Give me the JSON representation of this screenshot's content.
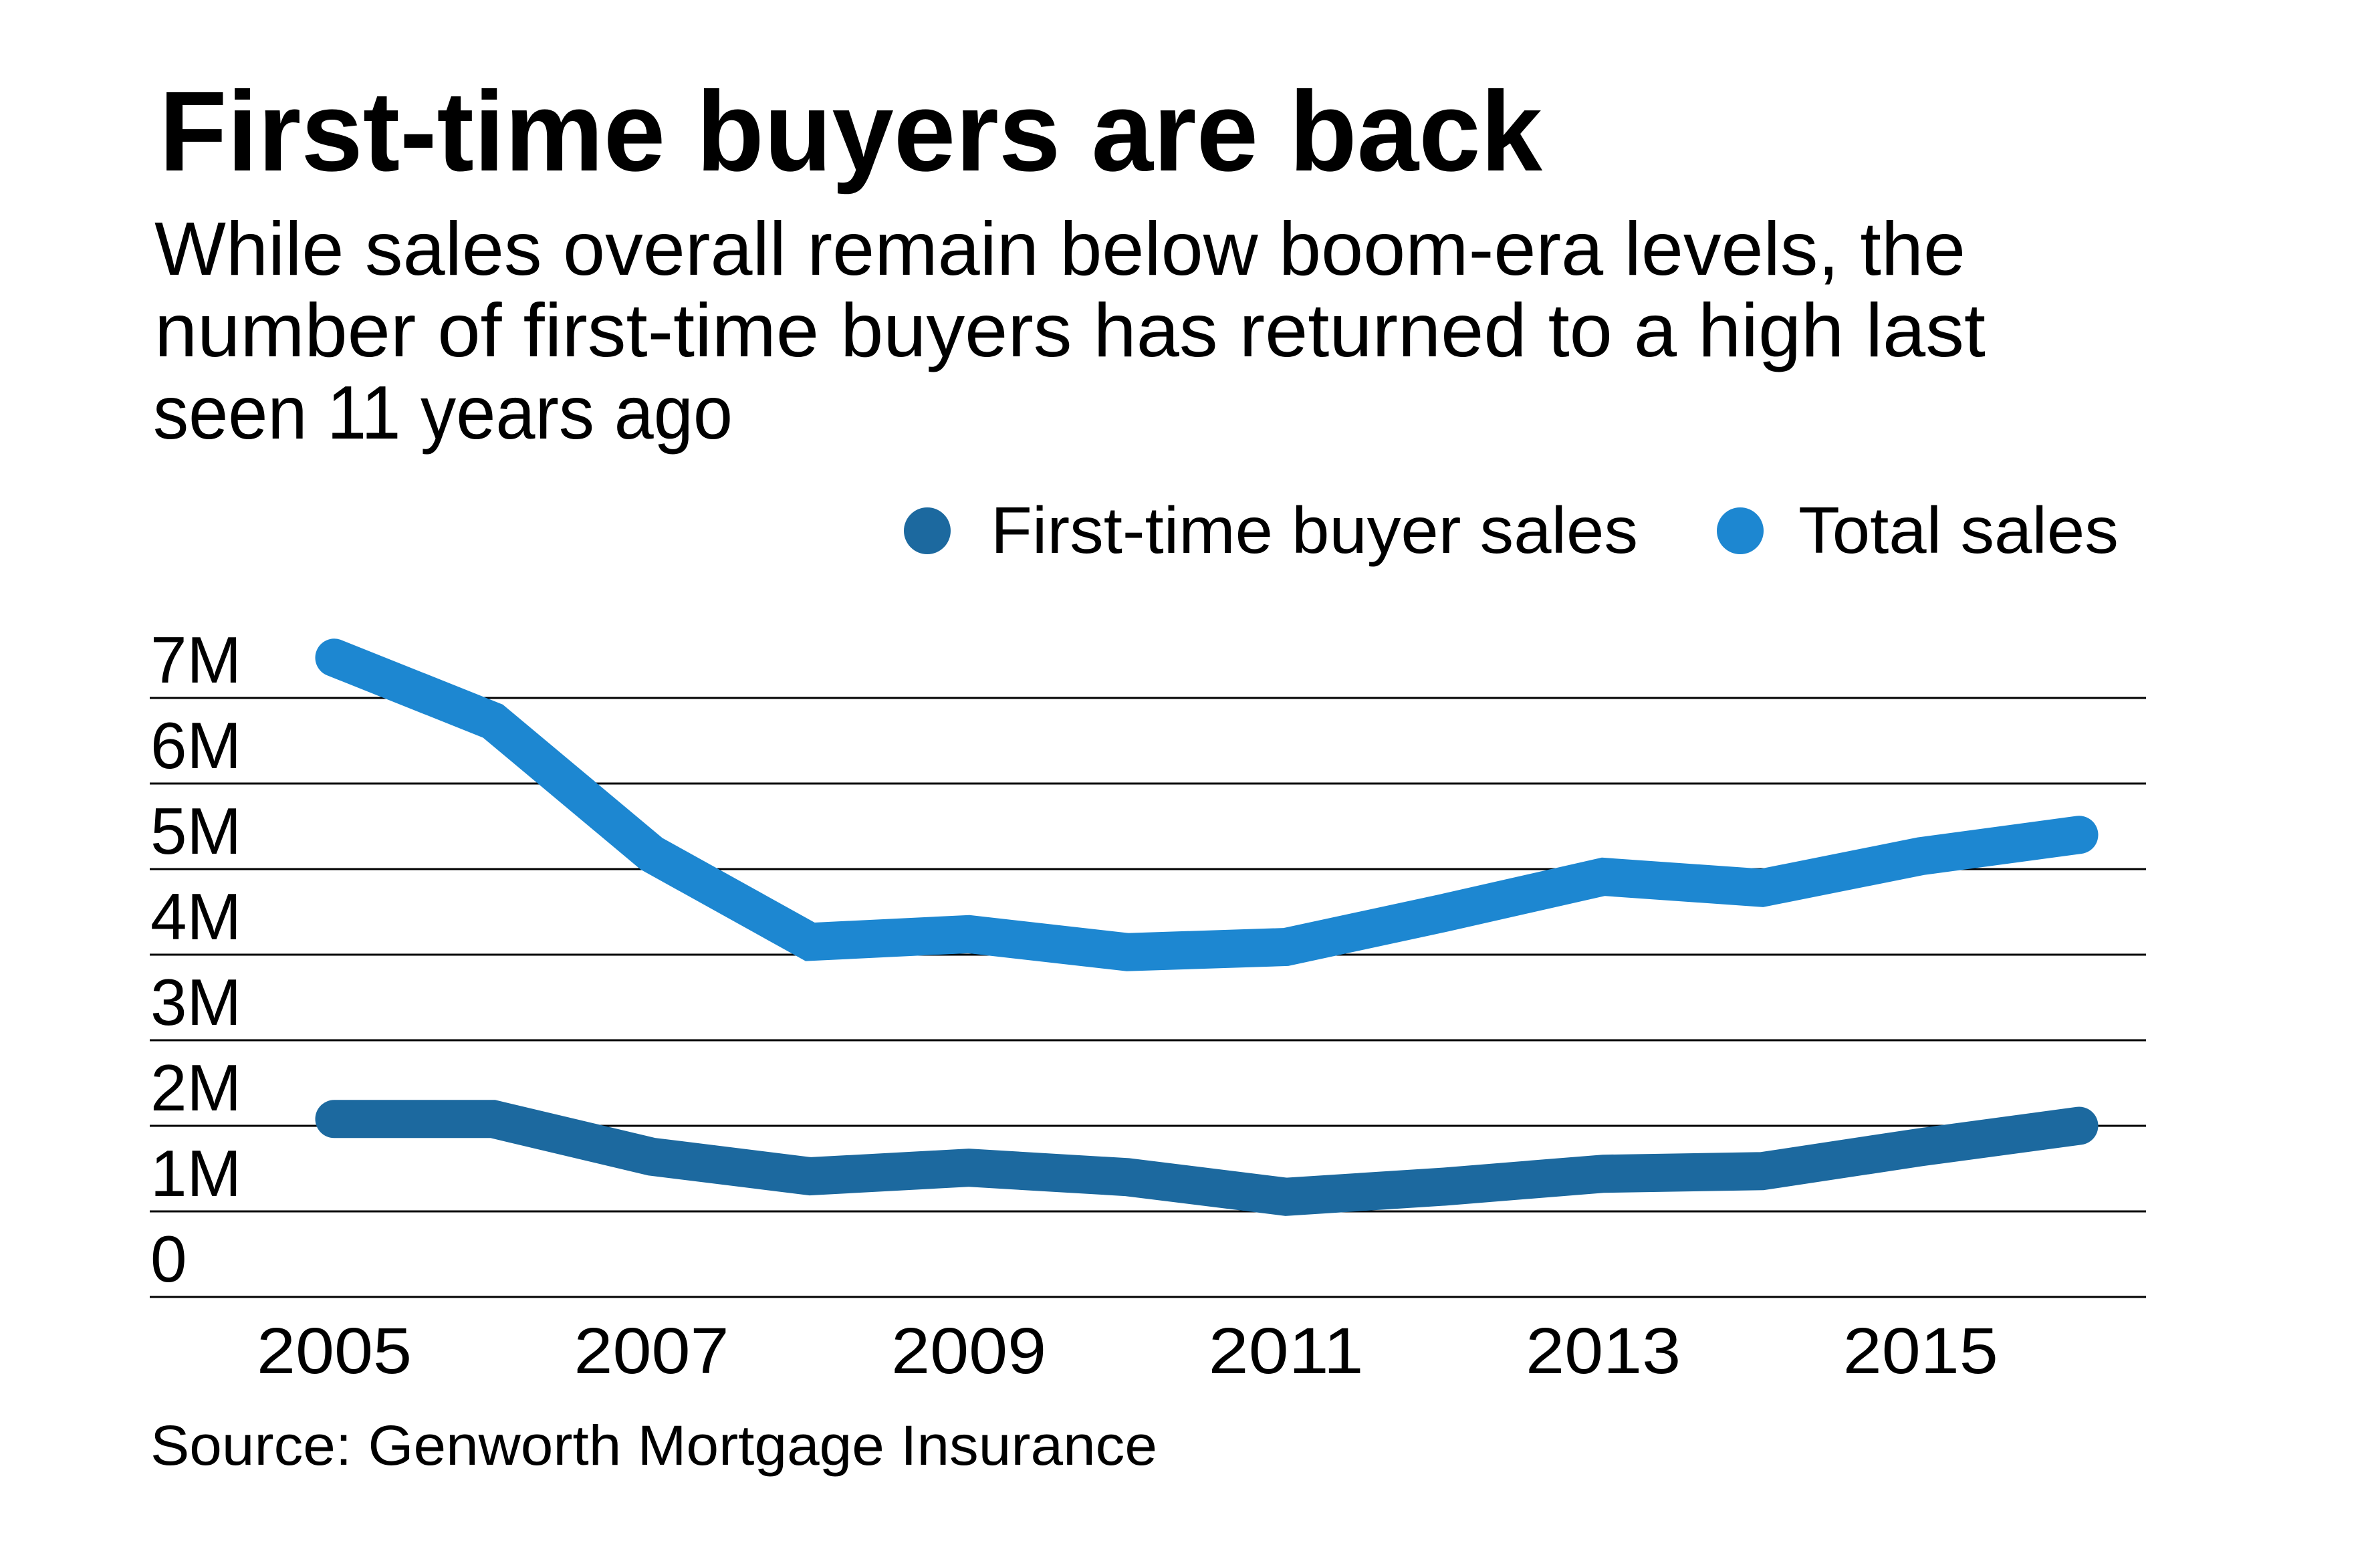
{
  "header": {
    "title": "First-time buyers are back",
    "subtitle_lines": [
      "While sales overall remain below boom-era levels, the",
      "number of first-time buyers has returned to a high last",
      "seen 11 years ago"
    ]
  },
  "legend": {
    "items": [
      {
        "label": "First-time buyer sales",
        "color": "#1c699f",
        "icon": "circle-marker-icon"
      },
      {
        "label": "Total sales",
        "color": "#1d87d1",
        "icon": "circle-marker-icon"
      }
    ]
  },
  "footer": {
    "source": "Source: Genworth Mortgage Insurance"
  },
  "chart_data": {
    "type": "line",
    "title": "First-time buyers are back",
    "subtitle": "While sales overall remain below boom-era levels, the number of first-time buyers has returned to a high last seen 11 years ago",
    "xlabel": "",
    "ylabel": "",
    "x": [
      2005,
      2006,
      2007,
      2008,
      2009,
      2010,
      2011,
      2012,
      2013,
      2014,
      2015,
      2016
    ],
    "xlim": [
      2005,
      2016
    ],
    "ylim": [
      0,
      7000000
    ],
    "x_tick_values": [
      2005,
      2007,
      2009,
      2011,
      2013,
      2015
    ],
    "x_tick_labels": [
      "2005",
      "2007",
      "2009",
      "2011",
      "2013",
      "2015"
    ],
    "y_tick_values": [
      0,
      1000000,
      2000000,
      3000000,
      4000000,
      5000000,
      6000000,
      7000000
    ],
    "y_tick_labels": [
      "0",
      "1M",
      "2M",
      "3M",
      "4M",
      "5M",
      "6M",
      "7M"
    ],
    "grid": true,
    "legend_position": "top-right",
    "series": [
      {
        "name": "First-time buyer sales",
        "color": "#1c699f",
        "values": [
          2080000,
          2080000,
          1640000,
          1410000,
          1510000,
          1400000,
          1170000,
          1290000,
          1440000,
          1470000,
          1750000,
          2000000
        ]
      },
      {
        "name": "Total sales",
        "color": "#1d87d1",
        "values": [
          7470000,
          6730000,
          5180000,
          4150000,
          4240000,
          4030000,
          4090000,
          4490000,
          4910000,
          4780000,
          5150000,
          5400000
        ]
      }
    ],
    "source": "Source: Genworth Mortgage Insurance"
  }
}
